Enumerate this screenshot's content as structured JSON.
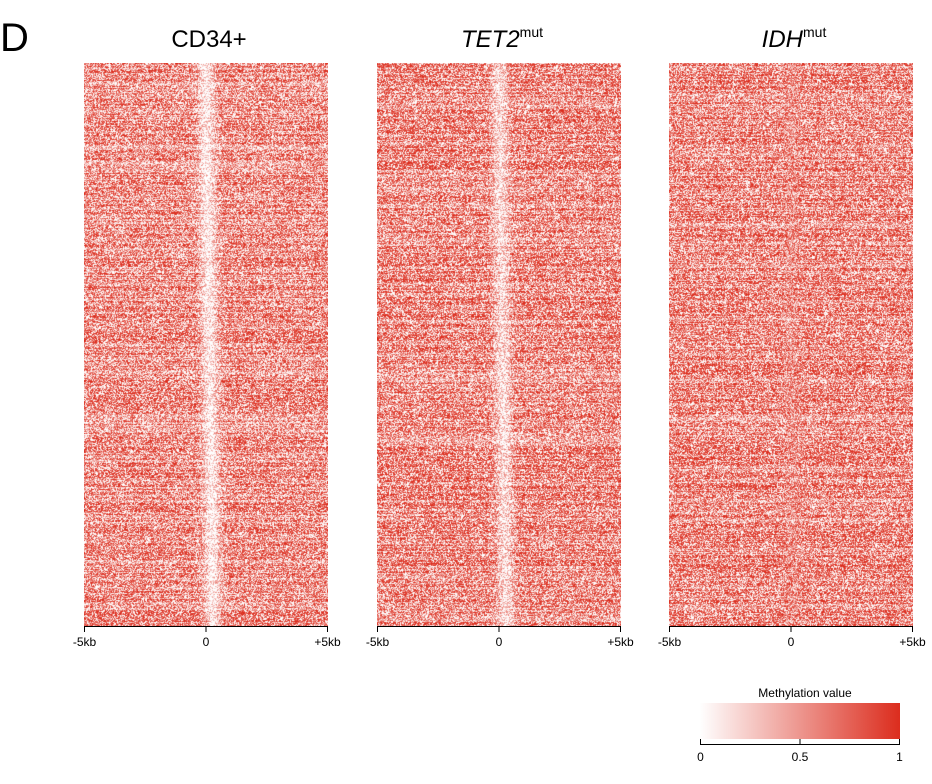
{
  "panel_letter": "D",
  "colors": {
    "low": "#ffffff",
    "high": "#dc2d1e"
  },
  "chart_data": [
    {
      "type": "heatmap",
      "title": "CD34+",
      "title_superscript": "",
      "title_italic": false,
      "x_ticks": [
        "-5kb",
        "0",
        "+5kb"
      ],
      "x_tick_positions_kb": [
        -5,
        0,
        5
      ],
      "xlim_kb": [
        -5,
        5
      ],
      "center_methylation": 0.05,
      "flank_methylation": 0.65,
      "center_drift_kb": 0.3
    },
    {
      "type": "heatmap",
      "title": "TET2",
      "title_superscript": "mut",
      "title_italic": true,
      "x_ticks": [
        "-5kb",
        "0",
        "+5kb"
      ],
      "x_tick_positions_kb": [
        -5,
        0,
        5
      ],
      "xlim_kb": [
        -5,
        5
      ],
      "center_methylation": 0.15,
      "flank_methylation": 0.68,
      "center_drift_kb": 0.3
    },
    {
      "type": "heatmap",
      "title": "IDH",
      "title_superscript": "mut",
      "title_italic": true,
      "x_ticks": [
        "-5kb",
        "0",
        "+5kb"
      ],
      "x_tick_positions_kb": [
        -5,
        0,
        5
      ],
      "xlim_kb": [
        -5,
        5
      ],
      "center_methylation": 0.55,
      "flank_methylation": 0.68,
      "center_drift_kb": 0.1
    }
  ],
  "legend": {
    "title": "Methylation value",
    "ticks": [
      "0",
      "0.5",
      "1"
    ],
    "tick_values": [
      0,
      0.5,
      1
    ],
    "range": [
      0,
      1
    ]
  }
}
